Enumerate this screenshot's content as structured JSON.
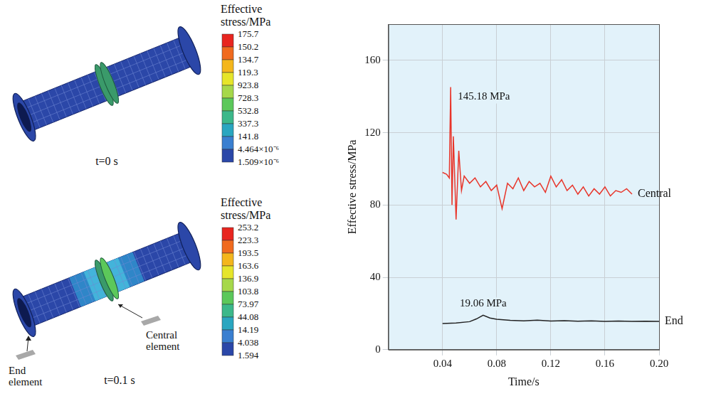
{
  "chart_data": {
    "type": "line",
    "x_label": "Time/s",
    "y_label": "Effective stress/MPa",
    "xlim": [
      0,
      0.2
    ],
    "xticks": [
      0.04,
      0.08,
      0.12,
      0.16,
      {
        "value": 0.2,
        "label": "0.20"
      }
    ],
    "ylim": [
      0,
      180
    ],
    "yticks": [
      0,
      40,
      80,
      120,
      160
    ],
    "grid": true,
    "series": [
      {
        "name": "End",
        "color": "#222222",
        "x": [
          0.04,
          0.05,
          0.06,
          0.065,
          0.07,
          0.075,
          0.08,
          0.09,
          0.1,
          0.11,
          0.12,
          0.13,
          0.14,
          0.15,
          0.16,
          0.17,
          0.18,
          0.19,
          0.2
        ],
        "values": [
          14.5,
          14.8,
          15.5,
          17,
          19.06,
          17.5,
          16.8,
          16.2,
          15.9,
          16.3,
          15.8,
          16,
          15.7,
          15.9,
          15.6,
          15.8,
          15.6,
          15.7,
          15.6
        ]
      },
      {
        "name": "Central",
        "color": "#e8352a",
        "x": [
          0.04,
          0.043,
          0.045,
          0.046,
          0.047,
          0.048,
          0.05,
          0.052,
          0.054,
          0.056,
          0.06,
          0.064,
          0.068,
          0.072,
          0.076,
          0.08,
          0.084,
          0.088,
          0.092,
          0.096,
          0.1,
          0.104,
          0.108,
          0.112,
          0.116,
          0.12,
          0.124,
          0.128,
          0.132,
          0.136,
          0.14,
          0.144,
          0.148,
          0.152,
          0.156,
          0.16,
          0.164,
          0.168,
          0.172,
          0.176,
          0.18
        ],
        "values": [
          98,
          97,
          95,
          145.18,
          80,
          118,
          72,
          110,
          88,
          96,
          92,
          95,
          90,
          93,
          88,
          91,
          78,
          92,
          89,
          95,
          88,
          93,
          90,
          92,
          87,
          96,
          90,
          94,
          88,
          91,
          86,
          90,
          85,
          89,
          86,
          90,
          85,
          88,
          87,
          89,
          86
        ]
      }
    ],
    "annotations": [
      {
        "text": "19.06 MPa",
        "x": 0.07,
        "y": 19.06
      },
      {
        "text": "145.18 MPa",
        "x": 0.046,
        "y": 145.18
      }
    ]
  },
  "contour_plots": [
    {
      "time_label": "t=0 s",
      "colorbar": {
        "title": "Effective stress/MPa",
        "ticks": [
          175.7,
          150.2,
          134.7,
          119.3,
          923.8,
          728.3,
          532.8,
          337.3,
          141.8,
          {
            "value": 4.464e-06,
            "label": "4.464×10⁻⁶"
          },
          {
            "value": 1.509e-06,
            "label": "1.509×10⁻⁶"
          }
        ],
        "colors": [
          "#e8251f",
          "#f06a1e",
          "#f4b61c",
          "#e6e52a",
          "#a6d84a",
          "#5cc85a",
          "#3cb88a",
          "#2aa6c0",
          "#3a7fd0",
          "#2b47a8"
        ]
      }
    },
    {
      "time_label": "t=0.1 s",
      "colorbar": {
        "title": "Effective stress/MPa",
        "ticks": [
          253.2,
          223.3,
          193.5,
          163.6,
          136.9,
          103.8,
          73.97,
          44.08,
          14.19,
          4.038,
          1.594
        ],
        "colors": [
          "#e8251f",
          "#f06a1e",
          "#f4b61c",
          "#e6e52a",
          "#a6d84a",
          "#5cc85a",
          "#3cb88a",
          "#2aa6c0",
          "#3a7fd0",
          "#2b47a8"
        ]
      },
      "element_labels": [
        "Central element",
        "End element"
      ]
    }
  ]
}
